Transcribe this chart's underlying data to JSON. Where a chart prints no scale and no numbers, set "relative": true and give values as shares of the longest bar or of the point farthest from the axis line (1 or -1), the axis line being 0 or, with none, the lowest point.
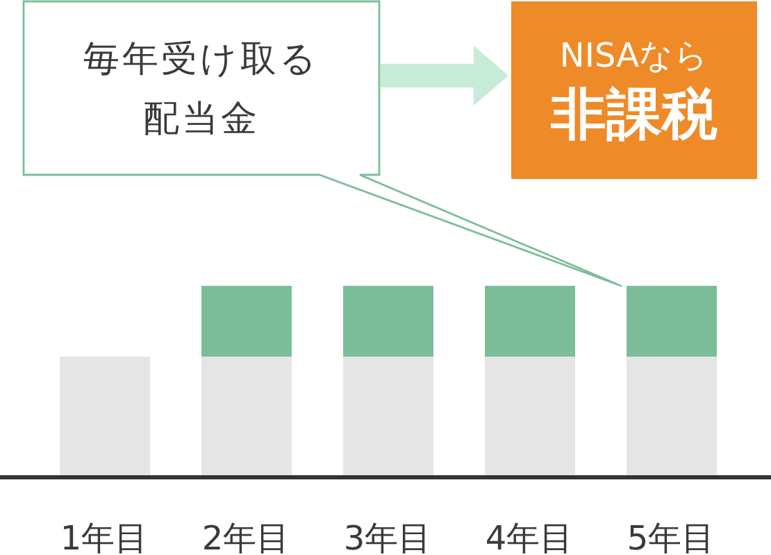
{
  "chart_data": {
    "type": "bar",
    "categories": [
      "1年目",
      "2年目",
      "3年目",
      "4年目",
      "5年目"
    ],
    "stacked": true,
    "relative": true,
    "series": [
      {
        "color": "#e5e5e5",
        "values": [
          0.63,
          0.63,
          0.63,
          0.63,
          0.63
        ]
      },
      {
        "color": "#7cbd99",
        "values": [
          null,
          0.37,
          0.37,
          0.37,
          0.37
        ]
      }
    ],
    "annotations": [
      "毎年受け取る配当金",
      "NISAなら",
      "非課税"
    ]
  }
}
